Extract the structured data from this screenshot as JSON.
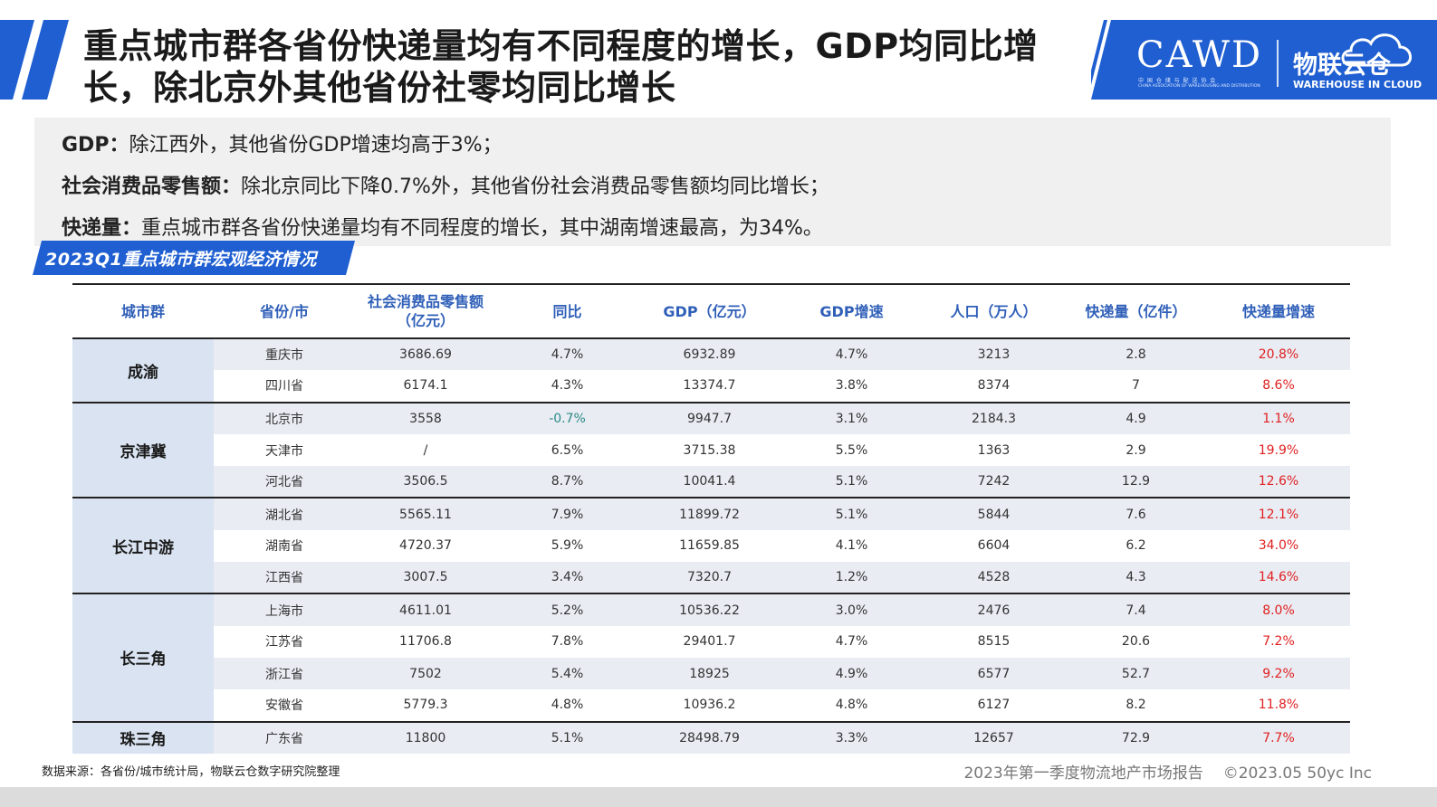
{
  "title": "重点城市群各省份快递量均有不同程度的增长，GDP均同比增长，除北京外其他省份社零均同比增长",
  "logo": {
    "cawd": "CAWD",
    "cawd_cn": "中 国 仓 储 与 配 送 协 会",
    "cawd_en": "CHINA ASSOCIATION OF WAREHOUSING AND DISTRIBUTION",
    "wlyc": "物联云仓",
    "wlyc_en": "WAREHOUSE IN CLOUD"
  },
  "summary": {
    "gdp_label": "GDP：",
    "gdp_text": "除江西外，其他省份GDP增速均高于3%；",
    "retail_label": "社会消费品零售额：",
    "retail_text": "除北京同比下降0.7%外，其他省份社会消费品零售额均同比增长；",
    "express_label": "快递量：",
    "express_text": "重点城市群各省份快递量均有不同程度的增长，其中湖南增速最高，为34%。"
  },
  "section_title": "2023Q1重点城市群宏观经济情况",
  "table": {
    "headers": [
      "城市群",
      "省份/市",
      "社会消费品零售额",
      "（亿元）",
      "同比",
      "GDP（亿元）",
      "GDP增速",
      "人口（万人）",
      "快递量（亿件）",
      "快递量增速"
    ],
    "groups": [
      {
        "name": "成渝",
        "rows": [
          {
            "province": "重庆市",
            "retail": "3686.69",
            "yoy": "4.7%",
            "gdp": "6932.89",
            "gdp_growth": "4.7%",
            "pop": "3213",
            "express": "2.8",
            "express_growth": "20.8%"
          },
          {
            "province": "四川省",
            "retail": "6174.1",
            "yoy": "4.3%",
            "gdp": "13374.7",
            "gdp_growth": "3.8%",
            "pop": "8374",
            "express": "7",
            "express_growth": "8.6%"
          }
        ]
      },
      {
        "name": "京津冀",
        "rows": [
          {
            "province": "北京市",
            "retail": "3558",
            "yoy": "-0.7%",
            "gdp": "9947.7",
            "gdp_growth": "3.1%",
            "pop": "2184.3",
            "express": "4.9",
            "express_growth": "1.1%"
          },
          {
            "province": "天津市",
            "retail": "/",
            "yoy": "6.5%",
            "gdp": "3715.38",
            "gdp_growth": "5.5%",
            "pop": "1363",
            "express": "2.9",
            "express_growth": "19.9%"
          },
          {
            "province": "河北省",
            "retail": "3506.5",
            "yoy": "8.7%",
            "gdp": "10041.4",
            "gdp_growth": "5.1%",
            "pop": "7242",
            "express": "12.9",
            "express_growth": "12.6%"
          }
        ]
      },
      {
        "name": "长江中游",
        "rows": [
          {
            "province": "湖北省",
            "retail": "5565.11",
            "yoy": "7.9%",
            "gdp": "11899.72",
            "gdp_growth": "5.1%",
            "pop": "5844",
            "express": "7.6",
            "express_growth": "12.1%"
          },
          {
            "province": "湖南省",
            "retail": "4720.37",
            "yoy": "5.9%",
            "gdp": "11659.85",
            "gdp_growth": "4.1%",
            "pop": "6604",
            "express": "6.2",
            "express_growth": "34.0%"
          },
          {
            "province": "江西省",
            "retail": "3007.5",
            "yoy": "3.4%",
            "gdp": "7320.7",
            "gdp_growth": "1.2%",
            "pop": "4528",
            "express": "4.3",
            "express_growth": "14.6%"
          }
        ]
      },
      {
        "name": "长三角",
        "rows": [
          {
            "province": "上海市",
            "retail": "4611.01",
            "yoy": "5.2%",
            "gdp": "10536.22",
            "gdp_growth": "3.0%",
            "pop": "2476",
            "express": "7.4",
            "express_growth": "8.0%"
          },
          {
            "province": "江苏省",
            "retail": "11706.8",
            "yoy": "7.8%",
            "gdp": "29401.7",
            "gdp_growth": "4.7%",
            "pop": "8515",
            "express": "20.6",
            "express_growth": "7.2%"
          },
          {
            "province": "浙江省",
            "retail": "7502",
            "yoy": "5.4%",
            "gdp": "18925",
            "gdp_growth": "4.9%",
            "pop": "6577",
            "express": "52.7",
            "express_growth": "9.2%"
          },
          {
            "province": "安徽省",
            "retail": "5779.3",
            "yoy": "4.8%",
            "gdp": "10936.2",
            "gdp_growth": "4.8%",
            "pop": "6127",
            "express": "8.2",
            "express_growth": "11.8%"
          }
        ]
      },
      {
        "name": "珠三角",
        "rows": [
          {
            "province": "广东省",
            "retail": "11800",
            "yoy": "5.1%",
            "gdp": "28498.79",
            "gdp_growth": "3.3%",
            "pop": "12657",
            "express": "72.9",
            "express_growth": "7.7%"
          }
        ]
      }
    ]
  },
  "source": "数据来源：各省份/城市统计局，物联云仓数字研究院整理",
  "footer": {
    "report": "2023年第一季度物流地产市场报告",
    "copyright": "©2023.05 50yc Inc"
  },
  "colors": {
    "brand_blue": "#1f5fd1",
    "header_blue": "#2f5fb8",
    "positive_red": "#e02020",
    "negative_teal": "#2a8a86"
  }
}
